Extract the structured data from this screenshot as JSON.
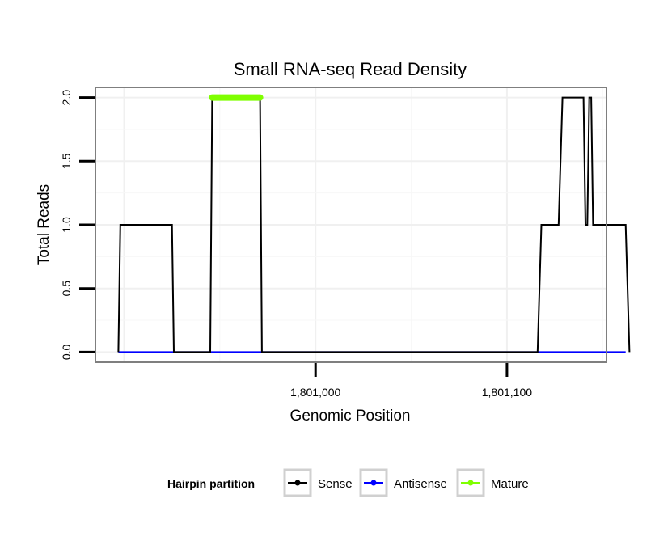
{
  "chart_data": {
    "type": "line",
    "title": "Small RNA-seq Read Density",
    "xlabel": "Genomic Position",
    "ylabel": "Total Reads",
    "xlim": [
      1800885,
      1801152
    ],
    "ylim": [
      -0.08,
      2.08
    ],
    "x_ticks": [
      1801000,
      1801100
    ],
    "x_tick_labels": [
      "1,801,000",
      "1,801,100"
    ],
    "y_ticks": [
      0,
      0.5,
      1,
      1.5,
      2
    ],
    "y_tick_labels": [
      "0.0",
      "0.5",
      "1.0",
      "1.5",
      "2.0"
    ],
    "grid": true,
    "legend": {
      "title": "Hairpin partition",
      "position": "bottom",
      "entries": [
        {
          "name": "Sense",
          "color": "#000000"
        },
        {
          "name": "Antisense",
          "color": "#0000FF"
        },
        {
          "name": "Mature",
          "color": "#7FFF00"
        }
      ]
    },
    "series": [
      {
        "name": "Sense",
        "color": "#000000",
        "x": [
          1800897,
          1800898,
          1800925,
          1800926,
          1800945,
          1800946,
          1800971,
          1800972,
          1801003,
          1801004,
          1801116,
          1801118,
          1801127,
          1801129,
          1801140,
          1801141,
          1801142,
          1801143,
          1801144,
          1801145,
          1801146,
          1801162,
          1801164
        ],
        "y": [
          0,
          1,
          1,
          0,
          0,
          2,
          2,
          0,
          0,
          0,
          0,
          1,
          1,
          2,
          2,
          1,
          1,
          2,
          2,
          1,
          1,
          1,
          0
        ]
      },
      {
        "name": "Antisense",
        "color": "#0000FF",
        "x": [
          1800897,
          1801162
        ],
        "y": [
          0,
          0
        ]
      },
      {
        "name": "Mature",
        "color": "#7FFF00",
        "x": [
          1800946,
          1800971
        ],
        "y": [
          2,
          2
        ]
      }
    ]
  }
}
